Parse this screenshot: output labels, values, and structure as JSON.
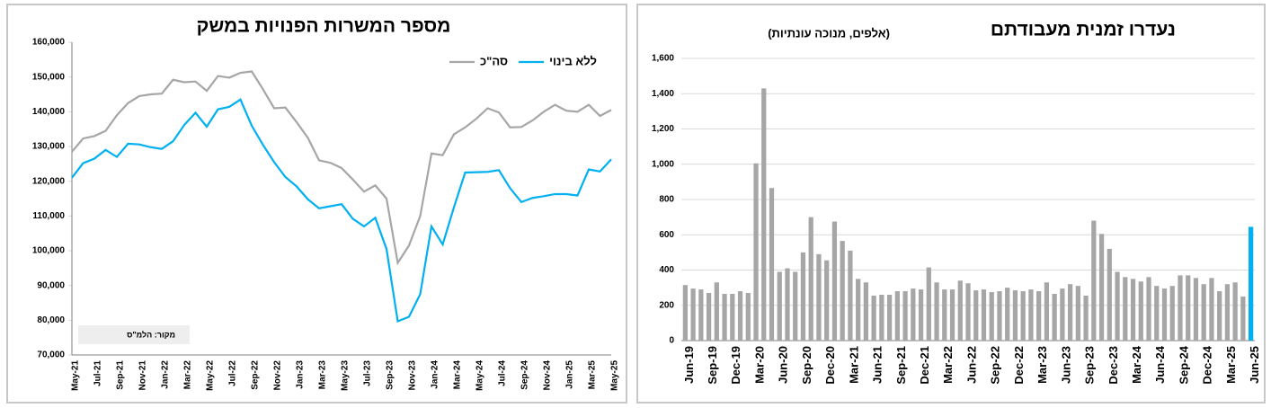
{
  "chart_data": [
    {
      "type": "line",
      "title": "מספר המשרות הפנויות במשק",
      "note": "מקור: הלמ\"ס",
      "legend": "top-right",
      "categories": [
        "May-21",
        null,
        "Jul-21",
        null,
        "Sep-21",
        null,
        "Nov-21",
        null,
        "Jan-22",
        null,
        "Mar-22",
        null,
        "May-22",
        null,
        "Jul-22",
        null,
        "Sep-22",
        null,
        "Nov-22",
        null,
        "Jan-23",
        null,
        "Mar-23",
        null,
        "May-23",
        null,
        "Jul-23",
        null,
        "Sep-23",
        null,
        "Nov-23",
        null,
        "Jan-24",
        null,
        "Mar-24",
        null,
        "May-24",
        null,
        "Jul-24",
        null,
        "Sep-24",
        null,
        "Nov-24",
        null,
        "Jan-25",
        null,
        "Mar-25",
        null,
        "May-25"
      ],
      "series": [
        {
          "name": "סה\"כ",
          "color": "#a6a6a6",
          "values": [
            128500,
            132300,
            133000,
            134500,
            139000,
            142500,
            144500,
            145000,
            145200,
            149200,
            148500,
            148700,
            146000,
            150300,
            149800,
            151200,
            151600,
            146500,
            141000,
            141200,
            137000,
            132500,
            126000,
            125300,
            123800,
            120500,
            117000,
            118800,
            115000,
            96500,
            101500,
            110000,
            128000,
            127500,
            133500,
            135500,
            138000,
            141000,
            139800,
            135500,
            135600,
            137500,
            140000,
            142000,
            140300,
            140000,
            142000,
            138800,
            140500
          ]
        },
        {
          "name": "ללא בינוי",
          "color": "#00b0f0",
          "values": [
            121000,
            125200,
            126500,
            129000,
            127000,
            130800,
            130600,
            129800,
            129300,
            131500,
            136200,
            139700,
            135700,
            140700,
            141400,
            143500,
            136000,
            130500,
            125500,
            121200,
            118500,
            114800,
            112200,
            112800,
            113400,
            109200,
            107000,
            109500,
            100500,
            79700,
            81000,
            87500,
            107000,
            101800,
            112500,
            122500,
            122600,
            122700,
            123200,
            118000,
            114000,
            115200,
            115700,
            116300,
            116300,
            115900,
            123400,
            122800,
            126300
          ]
        }
      ],
      "ylim": [
        70000,
        160000
      ],
      "yticks": [
        {
          "value": 70000,
          "label": "70,000"
        },
        {
          "value": 80000,
          "label": "80,000"
        },
        {
          "value": 90000,
          "label": "90,000"
        },
        {
          "value": 100000,
          "label": "100,000"
        },
        {
          "value": 110000,
          "label": "110,000"
        },
        {
          "value": 120000,
          "label": "120,000"
        },
        {
          "value": 130000,
          "label": "130,000"
        },
        {
          "value": 140000,
          "label": "140,000"
        },
        {
          "value": 150000,
          "label": "150,000"
        },
        {
          "value": 160000,
          "label": "160,000"
        }
      ],
      "grid": false
    },
    {
      "type": "bar",
      "title": "נעדרו זמנית מעבודתם",
      "subtitle": "(אלפים, מנוכה עונתיות)",
      "categories": [
        "Jun-19",
        null,
        null,
        "Sep-19",
        null,
        null,
        "Dec-19",
        null,
        null,
        "Mar-20",
        null,
        null,
        "Jun-20",
        null,
        null,
        "Sep-20",
        null,
        null,
        "Dec-20",
        null,
        null,
        "Mar-21",
        null,
        null,
        "Jun-21",
        null,
        null,
        "Sep-21",
        null,
        null,
        "Dec-21",
        null,
        null,
        "Mar-22",
        null,
        null,
        "Jun-22",
        null,
        null,
        "Sep-22",
        null,
        null,
        "Dec-22",
        null,
        null,
        "Mar-23",
        null,
        null,
        "Jun-23",
        null,
        null,
        "Sep-23",
        null,
        null,
        "Dec-23",
        null,
        null,
        "Mar-24",
        null,
        null,
        "Jun-24",
        null,
        null,
        "Sep-24",
        null,
        null,
        "Dec-24",
        null,
        null,
        "Mar-25",
        null,
        null,
        "Jun-25"
      ],
      "values": [
        315,
        295,
        290,
        270,
        330,
        265,
        265,
        280,
        270,
        1005,
        1430,
        865,
        390,
        410,
        390,
        500,
        700,
        490,
        455,
        675,
        565,
        510,
        350,
        330,
        255,
        260,
        260,
        280,
        280,
        295,
        290,
        415,
        330,
        290,
        290,
        340,
        325,
        285,
        290,
        275,
        280,
        300,
        285,
        280,
        290,
        280,
        330,
        265,
        295,
        320,
        310,
        255,
        680,
        605,
        520,
        390,
        360,
        350,
        335,
        360,
        310,
        295,
        310,
        370,
        370,
        355,
        320,
        355,
        280,
        320,
        330,
        250,
        645
      ],
      "colors": [
        "#a6a6a6",
        "#a6a6a6",
        "#a6a6a6",
        "#a6a6a6",
        "#a6a6a6",
        "#a6a6a6",
        "#a6a6a6",
        "#a6a6a6",
        "#a6a6a6",
        "#a6a6a6",
        "#a6a6a6",
        "#a6a6a6",
        "#a6a6a6",
        "#a6a6a6",
        "#a6a6a6",
        "#a6a6a6",
        "#a6a6a6",
        "#a6a6a6",
        "#a6a6a6",
        "#a6a6a6",
        "#a6a6a6",
        "#a6a6a6",
        "#a6a6a6",
        "#a6a6a6",
        "#a6a6a6",
        "#a6a6a6",
        "#a6a6a6",
        "#a6a6a6",
        "#a6a6a6",
        "#a6a6a6",
        "#a6a6a6",
        "#a6a6a6",
        "#a6a6a6",
        "#a6a6a6",
        "#a6a6a6",
        "#a6a6a6",
        "#a6a6a6",
        "#a6a6a6",
        "#a6a6a6",
        "#a6a6a6",
        "#a6a6a6",
        "#a6a6a6",
        "#a6a6a6",
        "#a6a6a6",
        "#a6a6a6",
        "#a6a6a6",
        "#a6a6a6",
        "#a6a6a6",
        "#a6a6a6",
        "#a6a6a6",
        "#a6a6a6",
        "#a6a6a6",
        "#a6a6a6",
        "#a6a6a6",
        "#a6a6a6",
        "#a6a6a6",
        "#a6a6a6",
        "#a6a6a6",
        "#a6a6a6",
        "#a6a6a6",
        "#a6a6a6",
        "#a6a6a6",
        "#a6a6a6",
        "#a6a6a6",
        "#a6a6a6",
        "#a6a6a6",
        "#a6a6a6",
        "#a6a6a6",
        "#a6a6a6",
        "#a6a6a6",
        "#a6a6a6",
        "#a6a6a6",
        "#00b0f0"
      ],
      "ylim": [
        0,
        1600
      ],
      "yticks": [
        0,
        200,
        400,
        600,
        800,
        {
          "value": 1000,
          "label": "1,000"
        },
        {
          "value": 1200,
          "label": "1,200"
        },
        {
          "value": 1400,
          "label": "1,400"
        },
        {
          "value": 1600,
          "label": "1,600"
        }
      ],
      "grid": true
    }
  ]
}
